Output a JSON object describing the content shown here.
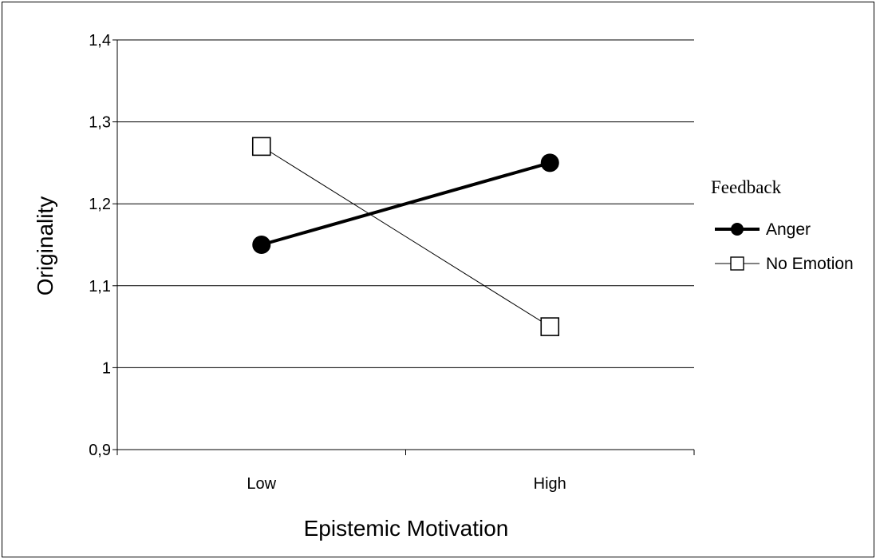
{
  "chart_data": {
    "type": "line",
    "xlabel": "Epistemic Motivation",
    "ylabel": "Originality",
    "categories": [
      "Low",
      "High"
    ],
    "ylim": [
      0.9,
      1.4
    ],
    "yticks": [
      0.9,
      1.0,
      1.1,
      1.2,
      1.3,
      1.4
    ],
    "ytick_labels": [
      "0,9",
      "1",
      "1,1",
      "1,2",
      "1,3",
      "1,4"
    ],
    "grid": true,
    "legend": {
      "title": "Feedback",
      "placement": "right"
    },
    "series": [
      {
        "name": "Anger",
        "values": [
          1.15,
          1.25
        ],
        "color": "#000000",
        "marker": "filled-circle",
        "line": "thick"
      },
      {
        "name": "No Emotion",
        "values": [
          1.27,
          1.05
        ],
        "color": "#000000",
        "marker": "open-square",
        "line": "thin"
      }
    ]
  }
}
